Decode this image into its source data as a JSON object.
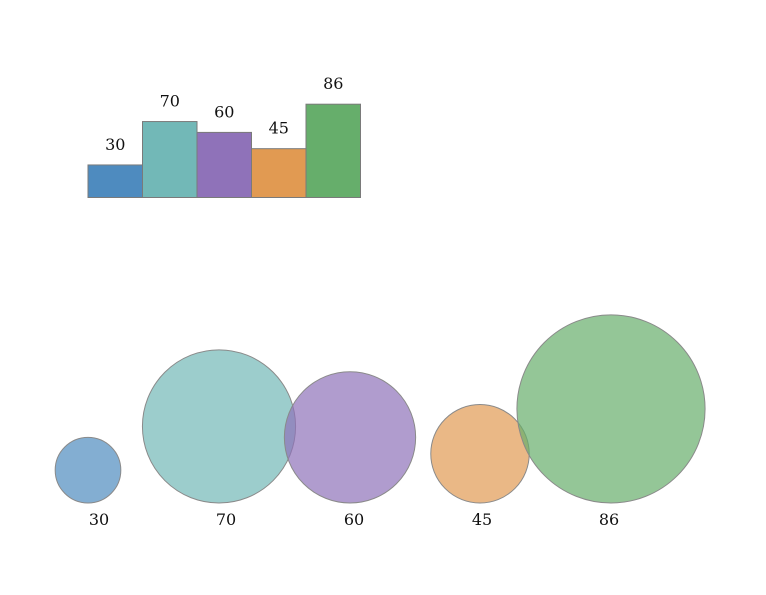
{
  "chart_data": [
    {
      "type": "bar",
      "categories": [
        "30",
        "70",
        "60",
        "45",
        "86"
      ],
      "values": [
        30,
        70,
        60,
        45,
        86
      ],
      "data_labels": [
        "30",
        "70",
        "60",
        "45",
        "86"
      ],
      "colors": [
        "#4e8bbf",
        "#72b8b7",
        "#8f72b9",
        "#e19a52",
        "#66ae6b"
      ],
      "title": "",
      "xlabel": "",
      "ylabel": "",
      "grid": false
    },
    {
      "type": "bubble",
      "categories": [
        "30",
        "70",
        "60",
        "45",
        "86"
      ],
      "values": [
        30,
        70,
        60,
        45,
        86
      ],
      "labels": [
        "30",
        "70",
        "60",
        "45",
        "86"
      ],
      "colors": [
        "#4e8bbf",
        "#72b8b7",
        "#8f72b9",
        "#e19a52",
        "#66ae6b"
      ],
      "title": "",
      "xlabel": "",
      "ylabel": "",
      "grid": false
    }
  ]
}
